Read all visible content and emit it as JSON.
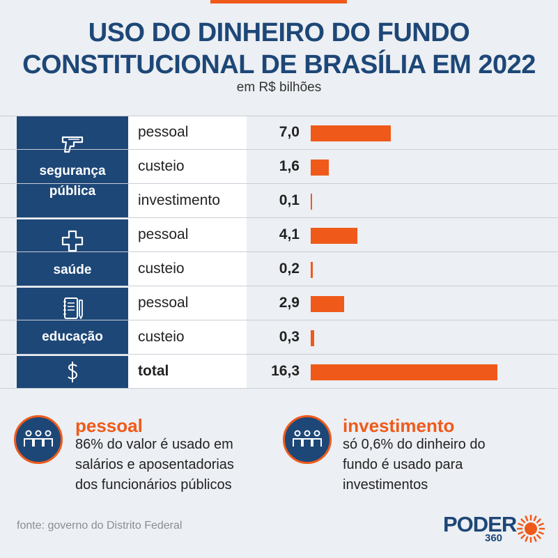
{
  "header": {
    "title_line1": "USO DO DINHEIRO DO FUNDO",
    "title_line2": "CONSTITUCIONAL DE BRASÍLIA EM 2022",
    "subtitle": "em R$ bilhões"
  },
  "colors": {
    "brand_blue": "#1d4777",
    "accent_orange": "#ef5a1a",
    "background": "#eceff3"
  },
  "categories": [
    {
      "label_line1": "segurança",
      "label_line2": "pública",
      "icon": "gun-icon"
    },
    {
      "label_line1": "saúde",
      "icon": "medical-cross-icon"
    },
    {
      "label_line1": "educação",
      "icon": "notebook-pen-icon"
    },
    {
      "label_line1": "",
      "icon": "dollar-sign-icon"
    }
  ],
  "chart_data": {
    "type": "bar",
    "orientation": "horizontal",
    "title": "USO DO DINHEIRO DO FUNDO CONSTITUCIONAL DE BRASÍLIA EM 2022",
    "subtitle": "em R$ bilhões",
    "max": 16.3,
    "rows": [
      {
        "group": "segurança pública",
        "label": "pessoal",
        "value_label": "7,0",
        "value": 7.0
      },
      {
        "group": "segurança pública",
        "label": "custeio",
        "value_label": "1,6",
        "value": 1.6
      },
      {
        "group": "segurança pública",
        "label": "investimento",
        "value_label": "0,1",
        "value": 0.1
      },
      {
        "group": "saúde",
        "label": "pessoal",
        "value_label": "4,1",
        "value": 4.1
      },
      {
        "group": "saúde",
        "label": "custeio",
        "value_label": "0,2",
        "value": 0.2
      },
      {
        "group": "educação",
        "label": "pessoal",
        "value_label": "2,9",
        "value": 2.9
      },
      {
        "group": "educação",
        "label": "custeio",
        "value_label": "0,3",
        "value": 0.3
      },
      {
        "group": "",
        "label": "total",
        "value_label": "16,3",
        "value": 16.3
      }
    ]
  },
  "notes": [
    {
      "heading": "pessoal",
      "line1": "86% do valor é usado em",
      "line2": "salários e aposentadorias",
      "line3": "dos funcionários públicos",
      "icon": "people-group-icon"
    },
    {
      "heading": "investimento",
      "line1": "só 0,6% do dinheiro do",
      "line2": "fundo é usado para",
      "line3": "investimentos",
      "icon": "people-group-icon"
    }
  ],
  "footer": {
    "source": "fonte: governo do Distrito Federal",
    "logo_text": "PODER",
    "logo_number": "360"
  }
}
